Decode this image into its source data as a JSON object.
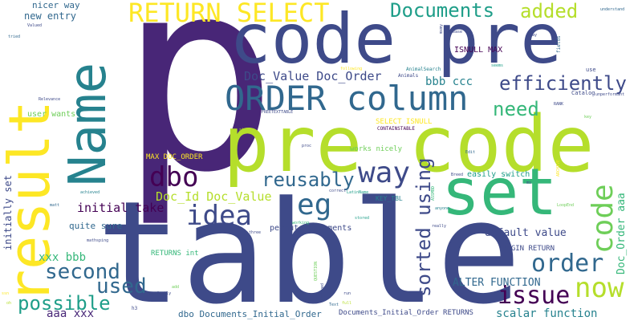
{
  "colors": {
    "background": "#ffffff",
    "palette": [
      "#440154",
      "#482677",
      "#3e4a89",
      "#31688e",
      "#26828e",
      "#1f9e89",
      "#35b779",
      "#6ece58",
      "#b5de2b",
      "#fde725"
    ]
  },
  "words": [
    {
      "text": "p",
      "color": "#482677"
    },
    {
      "text": "table",
      "color": "#3e4a89"
    },
    {
      "text": "code pre",
      "color": "#3e4a89"
    },
    {
      "text": "pre code",
      "color": "#b5de2b"
    },
    {
      "text": "result",
      "color": "#fde725"
    },
    {
      "text": "Name",
      "color": "#26828e"
    },
    {
      "text": "set",
      "color": "#35b779"
    },
    {
      "text": "ORDER column",
      "color": "#31688e"
    },
    {
      "text": "RETURN SELECT",
      "color": "#fde725"
    },
    {
      "text": "Documents",
      "color": "#1f9e89"
    },
    {
      "text": "added",
      "color": "#b5de2b"
    },
    {
      "text": "efficiently",
      "color": "#3e4a89"
    },
    {
      "text": "need",
      "color": "#35b779"
    },
    {
      "text": "way",
      "color": "#3e4a89"
    },
    {
      "text": "dbo",
      "color": "#440154"
    },
    {
      "text": "reusably",
      "color": "#31688e"
    },
    {
      "text": "idea",
      "color": "#3e4a89"
    },
    {
      "text": "eg",
      "color": "#31688e"
    },
    {
      "text": "code",
      "color": "#6ece58"
    },
    {
      "text": "order",
      "color": "#31688e"
    },
    {
      "text": "now",
      "color": "#b5de2b"
    },
    {
      "text": "issue",
      "color": "#440154"
    },
    {
      "text": "second",
      "color": "#31688e"
    },
    {
      "text": "used",
      "color": "#31688e"
    },
    {
      "text": "possible",
      "color": "#1f9e89"
    },
    {
      "text": "sorted using",
      "color": "#3e4a89"
    },
    {
      "text": "Doc_Value Doc_Order",
      "color": "#3e4a89"
    },
    {
      "text": "Doc_Id Doc_Value",
      "color": "#b5de2b"
    },
    {
      "text": "initial take",
      "color": "#440154"
    },
    {
      "text": "bbb ccc",
      "color": "#26828e"
    },
    {
      "text": "xxx bbb",
      "color": "#35b779"
    },
    {
      "text": "aaa xxx",
      "color": "#482677"
    },
    {
      "text": "default value",
      "color": "#3e4a89"
    },
    {
      "text": "scalar function",
      "color": "#26828e"
    },
    {
      "text": "ALTER FUNCTION",
      "color": "#31688e"
    },
    {
      "text": "Doc_Order aaa",
      "color": "#35b779"
    },
    {
      "text": "initially set",
      "color": "#3e4a89"
    },
    {
      "text": "nicer way",
      "color": "#31688e"
    },
    {
      "text": "new entry",
      "color": "#31688e"
    },
    {
      "text": "user wants",
      "color": "#6ece58"
    },
    {
      "text": "quite sure",
      "color": "#31688e"
    },
    {
      "text": "permute documents",
      "color": "#3e4a89"
    },
    {
      "text": "easily switch",
      "color": "#1f9e89"
    },
    {
      "text": "works nicely",
      "color": "#6ece58"
    },
    {
      "text": "MAX DOC_ORDER",
      "color": "#fde725"
    },
    {
      "text": "ISNULL MAX",
      "color": "#440154"
    },
    {
      "text": "SELECT ISNULL",
      "color": "#fde725"
    },
    {
      "text": "BEGIN RETURN",
      "color": "#3e4a89"
    },
    {
      "text": "RETURNS int",
      "color": "#35b779"
    },
    {
      "text": "KEY_TBL",
      "color": "#26828e"
    },
    {
      "text": "dbo Documents_Initial_Order",
      "color": "#31688e"
    },
    {
      "text": "Documents_Initial_Order RETURNS",
      "color": "#3e4a89"
    },
    {
      "text": "CONTAINSTABLE",
      "color": "#440154"
    },
    {
      "text": "FREETEXTTABLE",
      "color": "#3e4a89"
    },
    {
      "text": "AnimalSearch",
      "color": "#26828e"
    },
    {
      "text": "Catalog",
      "color": "#3e4a89"
    },
    {
      "text": "Animals",
      "color": "#3e4a89"
    },
    {
      "text": "understand",
      "color": "#31688e"
    },
    {
      "text": "please",
      "color": "#3e4a89"
    },
    {
      "text": "fields",
      "color": "#31688e"
    },
    {
      "text": "say",
      "color": "#3e4a89"
    },
    {
      "text": "seems",
      "color": "#1f9e89"
    },
    {
      "text": "use",
      "color": "#3e4a89"
    },
    {
      "text": "Relevance",
      "color": "#3e4a89"
    },
    {
      "text": "RANK",
      "color": "#3e4a89"
    },
    {
      "text": "unperformant",
      "color": "#3e4a89"
    },
    {
      "text": "key",
      "color": "#6ece58"
    },
    {
      "text": "Edit",
      "color": "#31688e"
    },
    {
      "text": "Breed",
      "color": "#3e4a89"
    },
    {
      "text": "LatinName",
      "color": "#1f9e89"
    },
    {
      "text": "correct",
      "color": "#3e4a89"
    },
    {
      "text": "anyone",
      "color": "#26828e"
    },
    {
      "text": "stored",
      "color": "#1f9e89"
    },
    {
      "text": "really",
      "color": "#3e4a89"
    },
    {
      "text": "three",
      "color": "#3e4a89"
    },
    {
      "text": "working",
      "color": "#35b779"
    },
    {
      "text": "mathsping",
      "color": "#3e4a89"
    },
    {
      "text": "achieved",
      "color": "#26828e"
    },
    {
      "text": "matt",
      "color": "#31688e"
    },
    {
      "text": "single",
      "color": "#b5de2b"
    },
    {
      "text": "proc",
      "color": "#3e4a89"
    },
    {
      "text": "perfectly",
      "color": "#3e4a89"
    },
    {
      "text": "Text",
      "color": "#31688e"
    },
    {
      "text": "Valued",
      "color": "#3e4a89"
    },
    {
      "text": "tried",
      "color": "#31688e"
    },
    {
      "text": "LoopEnd",
      "color": "#6ece58"
    },
    {
      "text": "full",
      "color": "#b5de2b"
    },
    {
      "text": "run",
      "color": "#3e4a89"
    },
    {
      "text": "h3",
      "color": "#3e4a89"
    },
    {
      "text": "ms",
      "color": "#3e4a89"
    },
    {
      "text": "following",
      "color": "#fde725"
    },
    {
      "text": "ARCHIVE",
      "color": "#fde725"
    },
    {
      "text": "QUESTION",
      "color": "#6ece58"
    },
    {
      "text": "derived",
      "color": "#3e4a89"
    },
    {
      "text": "mxmy",
      "color": "#3e4a89"
    },
    {
      "text": "ASSMBD",
      "color": "#35b779"
    },
    {
      "text": "ssn",
      "color": "#fde725"
    },
    {
      "text": "add",
      "color": "#6ece58"
    },
    {
      "text": "oh",
      "color": "#b5de2b"
    }
  ]
}
